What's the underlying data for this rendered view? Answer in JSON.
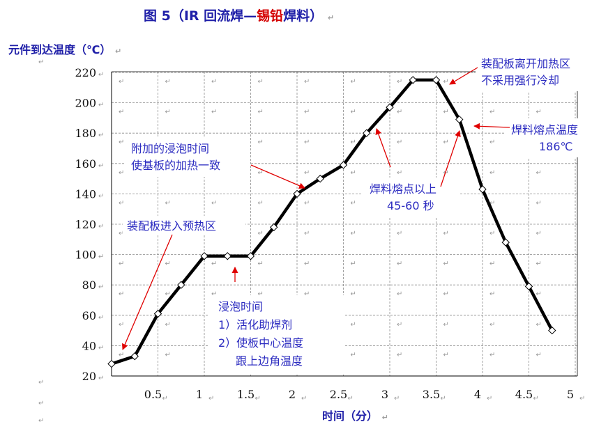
{
  "header": {
    "title_prefix": "图 5（IR 回流焊—",
    "title_red": "锡铅",
    "title_suffix": "焊料）",
    "ylabel": "元件到达温度（℃）",
    "xlabel": "时间（分）",
    "para_mark": "↵"
  },
  "colors": {
    "curve": "#000000",
    "arrow": "#e00000",
    "annotation": "#2b2bc0",
    "title_accent": "#d40000",
    "title": "#1f1fa8"
  },
  "chart_data": {
    "type": "line",
    "title": "图 5（IR 回流焊—锡铅焊料）",
    "xlabel": "时间（分）",
    "ylabel": "元件到达温度（℃）",
    "xlim": [
      0,
      5
    ],
    "ylim": [
      20,
      220
    ],
    "x_ticks": [
      0.5,
      1,
      1.5,
      2,
      2.5,
      3,
      3.5,
      4,
      4.5,
      5
    ],
    "x_tick_labels": [
      "0.5",
      "1",
      "1.5",
      "2",
      "2.5",
      "3",
      "3.5",
      "4",
      "4.5",
      "5"
    ],
    "y_ticks": [
      20,
      40,
      60,
      80,
      100,
      120,
      140,
      160,
      180,
      200,
      220
    ],
    "y_tick_labels": [
      "20",
      "40",
      "60",
      "80",
      "100",
      "120",
      "140",
      "160",
      "180",
      "200",
      "220"
    ],
    "grid": true,
    "series": [
      {
        "x": [
          0,
          0.25,
          0.5,
          0.75,
          1,
          1.25,
          1.5,
          1.75,
          2,
          2.25,
          2.5,
          2.75,
          3,
          3.25,
          3.5,
          3.75,
          4,
          4.25,
          4.5,
          4.75
        ],
        "y": [
          28,
          33,
          61,
          80,
          99,
          99,
          99,
          118,
          140,
          150,
          159,
          180,
          197,
          215,
          215,
          189,
          143,
          108,
          79,
          50
        ]
      }
    ],
    "annotations": [
      {
        "lines": [
          "装配板进入预热区"
        ]
      },
      {
        "lines": [
          "附加的浸泡时间",
          "使基板的加热一致"
        ]
      },
      {
        "lines": [
          "浸泡时间",
          "1）活化助焊剂",
          "2）使板中心温度",
          "　跟上边角温度"
        ]
      },
      {
        "lines": [
          "焊料熔点以上",
          "45-60 秒"
        ]
      },
      {
        "lines": [
          "装配板离开加热区",
          "不采用强行冷却"
        ]
      },
      {
        "lines": [
          "焊料熔点温度",
          "186℃"
        ]
      }
    ]
  }
}
